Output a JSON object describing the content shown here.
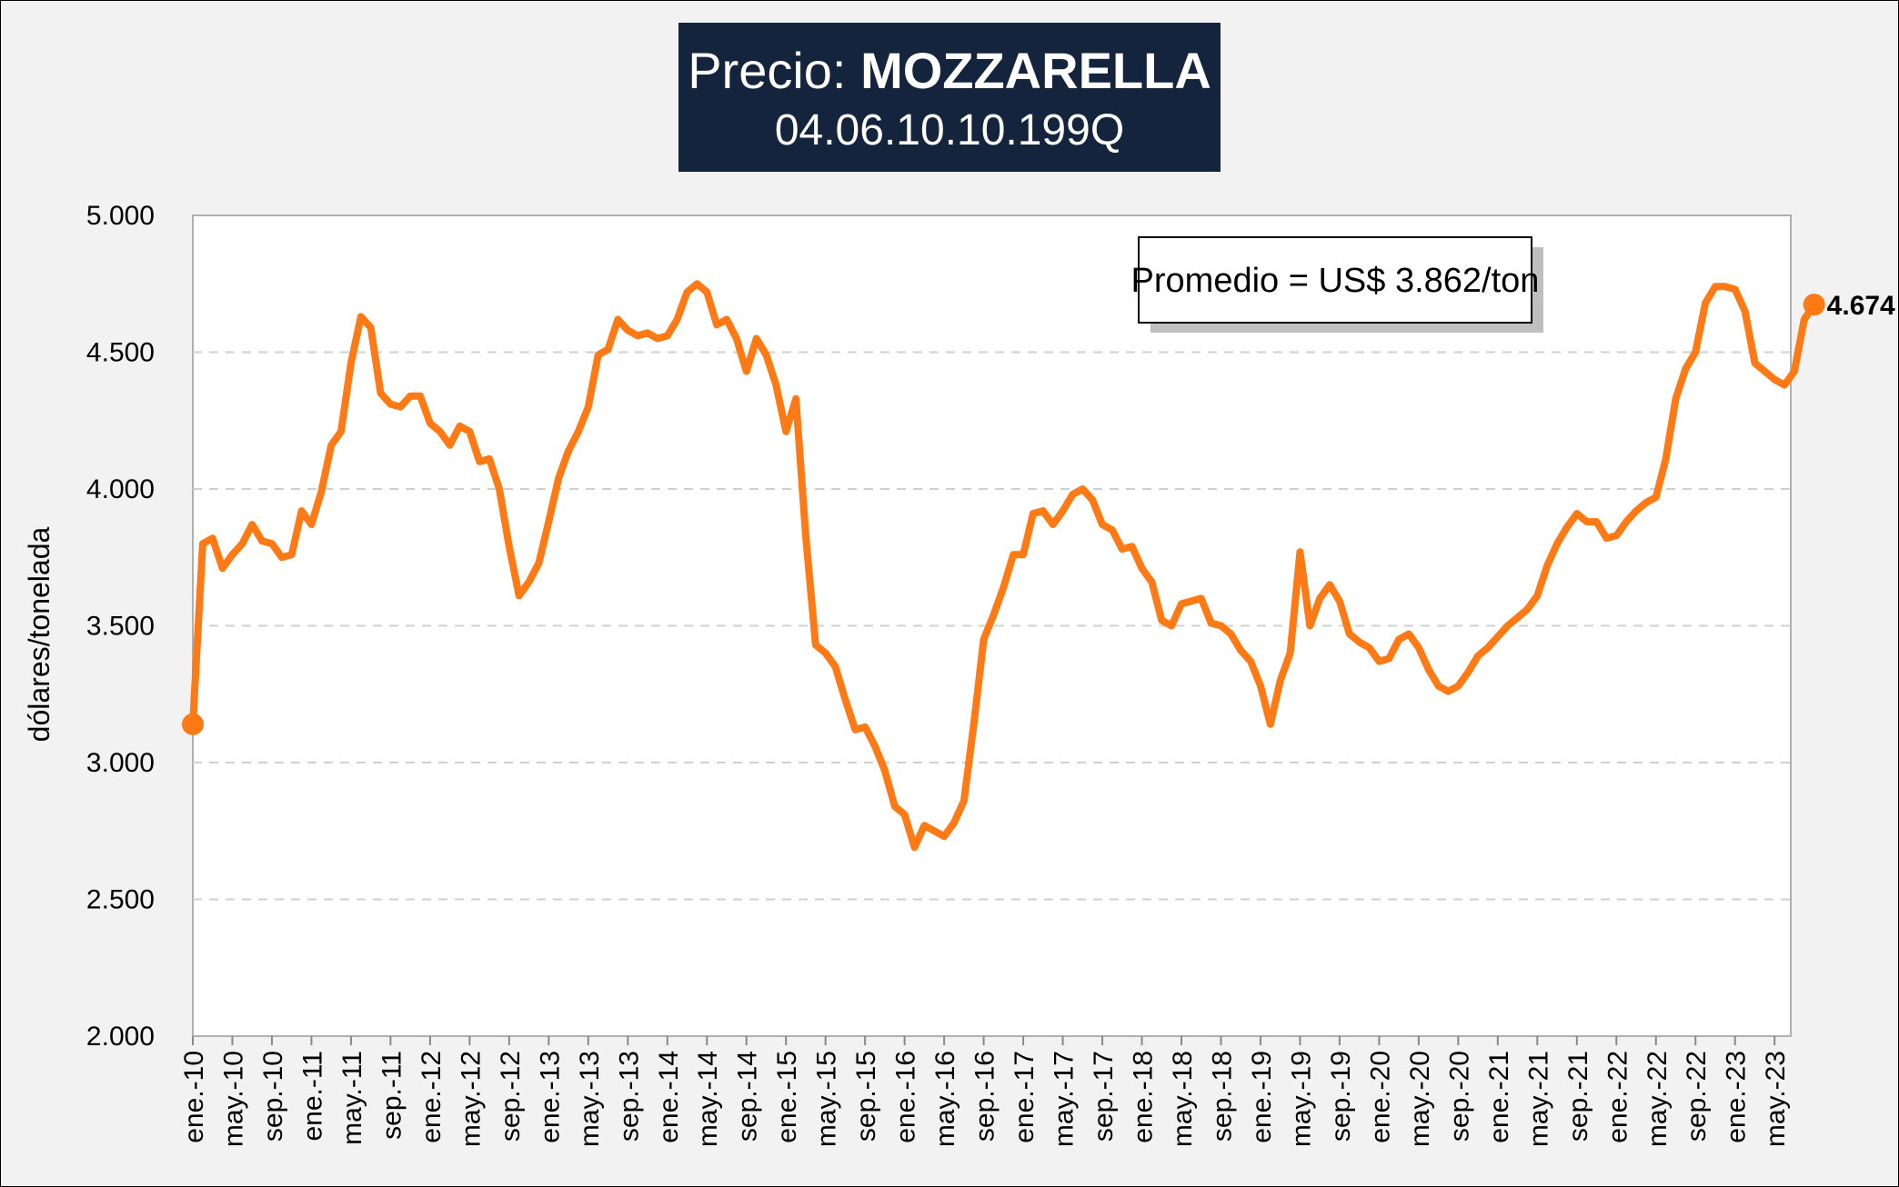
{
  "title": {
    "prefix": "Precio: ",
    "product": "MOZZARELLA",
    "code": "04.06.10.10.199Q"
  },
  "colors": {
    "line": "#ff7a14",
    "title_bg": "#14243d",
    "grid": "#d0d0d0"
  },
  "chart_data": {
    "type": "line",
    "ylabel": "dólares/tonelada",
    "ylim": [
      2000,
      5000
    ],
    "yticks": [
      2000,
      2500,
      3000,
      3500,
      4000,
      4500,
      5000
    ],
    "ytick_labels": [
      "2.000",
      "2.500",
      "3.000",
      "3.500",
      "4.000",
      "4.500",
      "5.000"
    ],
    "grid": "horizontal dashed",
    "x_tick_labels": [
      "ene.-10",
      "may.-10",
      "sep.-10",
      "ene.-11",
      "may.-11",
      "sep.-11",
      "ene.-12",
      "may.-12",
      "sep.-12",
      "ene.-13",
      "may.-13",
      "sep.-13",
      "ene.-14",
      "may.-14",
      "sep.-14",
      "ene.-15",
      "may.-15",
      "sep.-15",
      "ene.-16",
      "may.-16",
      "sep.-16",
      "ene.-17",
      "may.-17",
      "sep.-17",
      "ene.-18",
      "may.-18",
      "sep.-18",
      "ene.-19",
      "may.-19",
      "sep.-19",
      "ene.-20",
      "may.-20",
      "sep.-20",
      "ene.-21",
      "may.-21",
      "sep.-21",
      "ene.-22",
      "may.-22",
      "sep.-22",
      "ene.-23",
      "may.-23"
    ],
    "x_start": "ene.-10",
    "x_end": "jun.-23",
    "series": [
      {
        "values": [
          3140,
          3800,
          3820,
          3710,
          3760,
          3800,
          3870,
          3810,
          3800,
          3750,
          3760,
          3920,
          3870,
          3990,
          4160,
          4210,
          4460,
          4630,
          4590,
          4350,
          4310,
          4300,
          4340,
          4340,
          4240,
          4210,
          4160,
          4230,
          4210,
          4100,
          4110,
          4000,
          3790,
          3610,
          3660,
          3730,
          3880,
          4040,
          4140,
          4210,
          4300,
          4490,
          4510,
          4620,
          4580,
          4560,
          4570,
          4550,
          4560,
          4620,
          4720,
          4750,
          4720,
          4600,
          4620,
          4550,
          4430,
          4550,
          4490,
          4380,
          4210,
          4330,
          3830,
          3430,
          3400,
          3350,
          3230,
          3120,
          3130,
          3060,
          2970,
          2840,
          2810,
          2690,
          2770,
          2750,
          2730,
          2780,
          2860,
          3140,
          3450,
          3540,
          3640,
          3760,
          3760,
          3910,
          3920,
          3870,
          3920,
          3980,
          4000,
          3960,
          3870,
          3850,
          3780,
          3790,
          3710,
          3660,
          3520,
          3500,
          3580,
          3590,
          3600,
          3510,
          3500,
          3470,
          3410,
          3370,
          3280,
          3140,
          3300,
          3400,
          3770,
          3500,
          3600,
          3650,
          3590,
          3470,
          3440,
          3420,
          3370,
          3380,
          3450,
          3470,
          3420,
          3340,
          3280,
          3260,
          3280,
          3330,
          3390,
          3420,
          3460,
          3500,
          3530,
          3560,
          3610,
          3720,
          3800,
          3860,
          3910,
          3880,
          3880,
          3820,
          3830,
          3880,
          3920,
          3950,
          3970,
          4110,
          4330,
          4440,
          4500,
          4680,
          4740,
          4740,
          4730,
          4650,
          4460,
          4430,
          4400,
          4380,
          4430,
          4620,
          4674
        ]
      }
    ],
    "annotation": "Promedio = US$ 3.862/ton",
    "last_value_label": "4.674"
  }
}
